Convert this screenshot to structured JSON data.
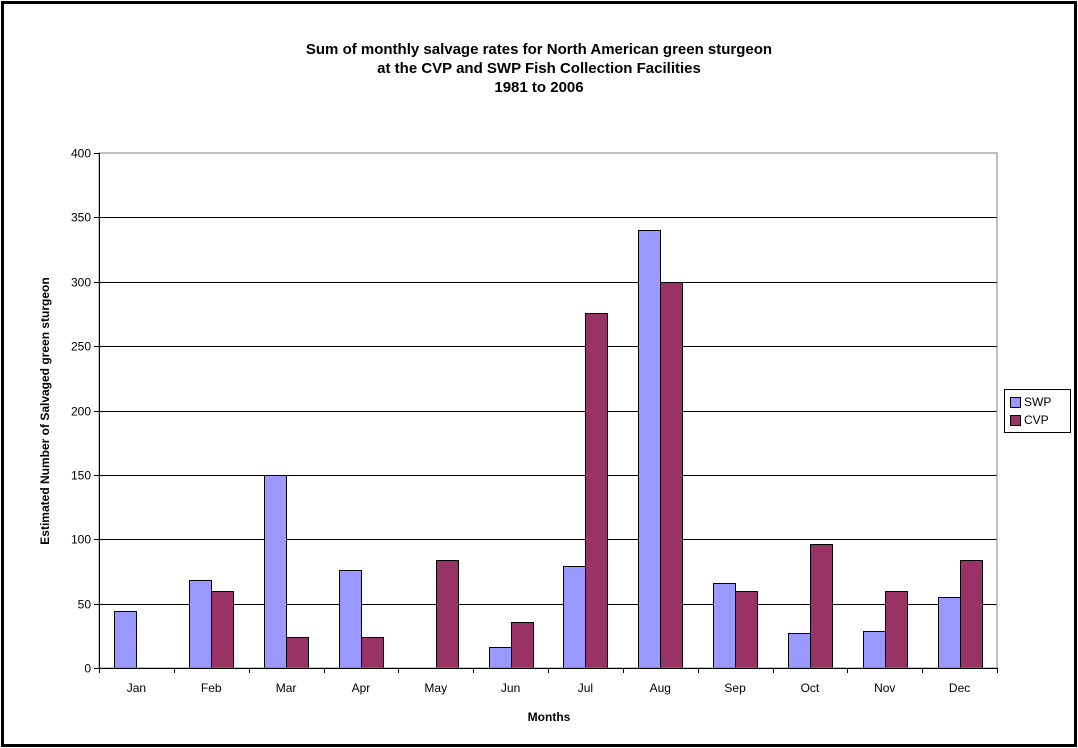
{
  "chart_data": {
    "type": "bar",
    "title": [
      "Sum of monthly salvage rates for North American green sturgeon",
      "at the CVP and SWP Fish Collection Facilities",
      "1981 to 2006"
    ],
    "xlabel": "Months",
    "ylabel": "Estimated  Number of Salvaged green sturgeon",
    "categories": [
      "Jan",
      "Feb",
      "Mar",
      "Apr",
      "May",
      "Jun",
      "Jul",
      "Aug",
      "Sep",
      "Oct",
      "Nov",
      "Dec"
    ],
    "ylim": [
      0,
      400
    ],
    "yticks": [
      0,
      50,
      100,
      150,
      200,
      250,
      300,
      350,
      400
    ],
    "grid": true,
    "legend_position": "right",
    "series": [
      {
        "name": "SWP",
        "color": "#9999ff",
        "values": [
          44,
          68,
          150,
          76,
          0,
          16,
          79,
          340,
          66,
          27,
          29,
          55
        ]
      },
      {
        "name": "CVP",
        "color": "#993366",
        "values": [
          0,
          60,
          24,
          24,
          84,
          36,
          276,
          300,
          60,
          96,
          60,
          84
        ]
      }
    ]
  }
}
